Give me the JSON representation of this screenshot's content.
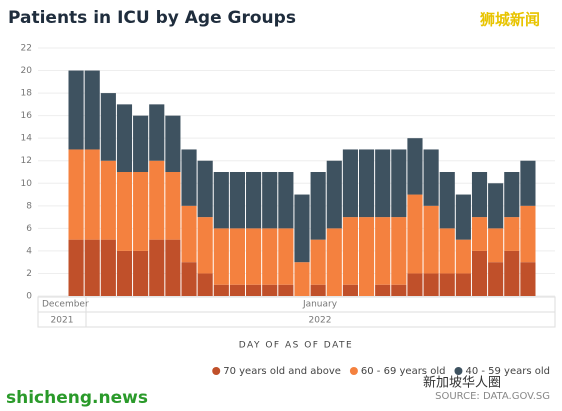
{
  "chart_data": {
    "type": "stacked_bar",
    "title": "Patients in ICU by Age Groups",
    "x_label": "DAY OF AS OF DATE",
    "source": "SOURCE: DATA.GOV.SG",
    "watermarks": [
      "狮城新闻",
      "shicheng.news",
      "新加坡华人圈"
    ],
    "x_groups": [
      {
        "label": "December",
        "year": "2021"
      },
      {
        "label": "January",
        "year": "2022"
      }
    ],
    "categories": [
      null,
      null,
      null,
      null,
      null,
      null,
      null,
      null,
      null,
      null,
      null,
      null,
      null,
      null,
      null,
      null,
      null,
      null,
      null,
      null,
      null,
      null,
      null,
      null,
      null,
      null,
      null,
      null,
      null
    ],
    "series": [
      {
        "name": "70 years old and above",
        "color": "#c0502a",
        "values": [
          5,
          5,
          5,
          4,
          4,
          5,
          5,
          3,
          2,
          1,
          1,
          1,
          1,
          1,
          0,
          1,
          0,
          1,
          0,
          1,
          1,
          2,
          2,
          2,
          2,
          4,
          3,
          4,
          3
        ]
      },
      {
        "name": "60 - 69 years old",
        "color": "#f4813f",
        "values": [
          8,
          8,
          7,
          7,
          7,
          7,
          6,
          5,
          5,
          5,
          5,
          5,
          5,
          5,
          3,
          4,
          6,
          6,
          7,
          6,
          6,
          7,
          6,
          4,
          3,
          3,
          3,
          3,
          5
        ]
      },
      {
        "name": "40 - 59 years old",
        "color": "#3e5260",
        "values": [
          7,
          7,
          6,
          6,
          5,
          5,
          5,
          5,
          5,
          5,
          5,
          5,
          5,
          5,
          6,
          6,
          6,
          6,
          6,
          6,
          6,
          5,
          5,
          5,
          4,
          4,
          4,
          4,
          4
        ]
      }
    ],
    "ylim": [
      0,
      22
    ],
    "yticks": [
      0,
      2,
      4,
      6,
      8,
      10,
      12,
      14,
      16,
      18,
      20,
      22
    ],
    "grid": true,
    "legend": "bottom-right"
  }
}
